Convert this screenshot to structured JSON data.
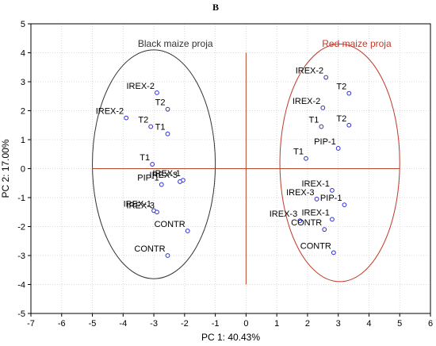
{
  "panel_letter": "B",
  "colors": {
    "black_group": "#333333",
    "red_group": "#c0392b",
    "points": "#2b2bd6",
    "zero_lines": "#b5472b",
    "grid": "#cfcfcf"
  },
  "chart_data": {
    "type": "scatter",
    "title": "B",
    "xlabel": "PC 1: 40.43%",
    "ylabel": "PC 2: 17.00%",
    "xlim": [
      -7,
      6
    ],
    "ylim": [
      -5,
      5
    ],
    "xticks": [
      -7,
      -6,
      -5,
      -4,
      -3,
      -2,
      -1,
      0,
      1,
      2,
      3,
      4,
      5,
      6
    ],
    "yticks": [
      -5,
      -4,
      -3,
      -2,
      -1,
      0,
      1,
      2,
      3,
      4,
      5
    ],
    "grid": true,
    "groups": [
      {
        "name": "Black maize proja",
        "color": "#333333",
        "ellipse": {
          "cx": -3.0,
          "cy": 0.15,
          "rx": 2.0,
          "ry": 3.95
        }
      },
      {
        "name": "Red maize proja",
        "color": "#c0392b",
        "ellipse": {
          "cx": 3.05,
          "cy": 0.2,
          "rx": 1.95,
          "ry": 4.1
        }
      }
    ],
    "points": [
      {
        "label": "IREX-2",
        "x": -2.9,
        "y": 2.62,
        "group": "Black maize proja"
      },
      {
        "label": "IREX-2",
        "x": -3.9,
        "y": 1.75,
        "group": "Black maize proja"
      },
      {
        "label": "T2",
        "x": -2.55,
        "y": 2.05,
        "group": "Black maize proja"
      },
      {
        "label": "T2",
        "x": -3.1,
        "y": 1.45,
        "group": "Black maize proja"
      },
      {
        "label": "T1",
        "x": -2.55,
        "y": 1.2,
        "group": "Black maize proja"
      },
      {
        "label": "T1",
        "x": -3.05,
        "y": 0.15,
        "group": "Black maize proja"
      },
      {
        "label": "PIP-1",
        "x": -2.75,
        "y": -0.55,
        "group": "Black maize proja"
      },
      {
        "label": "IREX-1",
        "x": -2.05,
        "y": -0.4,
        "group": "Black maize proja"
      },
      {
        "label": "IREX-3",
        "x": -2.15,
        "y": -0.45,
        "group": "Black maize proja"
      },
      {
        "label": "IREX-1",
        "x": -3.0,
        "y": -1.45,
        "group": "Black maize proja"
      },
      {
        "label": "IREX-3",
        "x": -2.9,
        "y": -1.5,
        "group": "Black maize proja"
      },
      {
        "label": "CONTR",
        "x": -1.9,
        "y": -2.15,
        "group": "Black maize proja"
      },
      {
        "label": "CONTR",
        "x": -2.55,
        "y": -3.0,
        "group": "Black maize proja"
      },
      {
        "label": "IREX-2",
        "x": 2.6,
        "y": 3.15,
        "group": "Red maize proja"
      },
      {
        "label": "T2",
        "x": 3.35,
        "y": 2.6,
        "group": "Red maize proja"
      },
      {
        "label": "IREX-2",
        "x": 2.5,
        "y": 2.1,
        "group": "Red maize proja"
      },
      {
        "label": "T2",
        "x": 3.35,
        "y": 1.5,
        "group": "Red maize proja"
      },
      {
        "label": "T1",
        "x": 2.45,
        "y": 1.45,
        "group": "Red maize proja"
      },
      {
        "label": "PIP-1",
        "x": 3.0,
        "y": 0.7,
        "group": "Red maize proja"
      },
      {
        "label": "T1",
        "x": 1.95,
        "y": 0.35,
        "group": "Red maize proja"
      },
      {
        "label": "IREX-1",
        "x": 2.8,
        "y": -0.75,
        "group": "Red maize proja"
      },
      {
        "label": "IREX-3",
        "x": 2.3,
        "y": -1.05,
        "group": "Red maize proja"
      },
      {
        "label": "PIP-1",
        "x": 3.2,
        "y": -1.25,
        "group": "Red maize proja"
      },
      {
        "label": "IREX-1",
        "x": 2.8,
        "y": -1.75,
        "group": "Red maize proja"
      },
      {
        "label": "IREX-3",
        "x": 1.75,
        "y": -1.8,
        "group": "Red maize proja"
      },
      {
        "label": "CONTR",
        "x": 2.55,
        "y": -2.1,
        "group": "Red maize proja"
      },
      {
        "label": "CONTR",
        "x": 2.85,
        "y": -2.9,
        "group": "Red maize proja"
      }
    ]
  }
}
